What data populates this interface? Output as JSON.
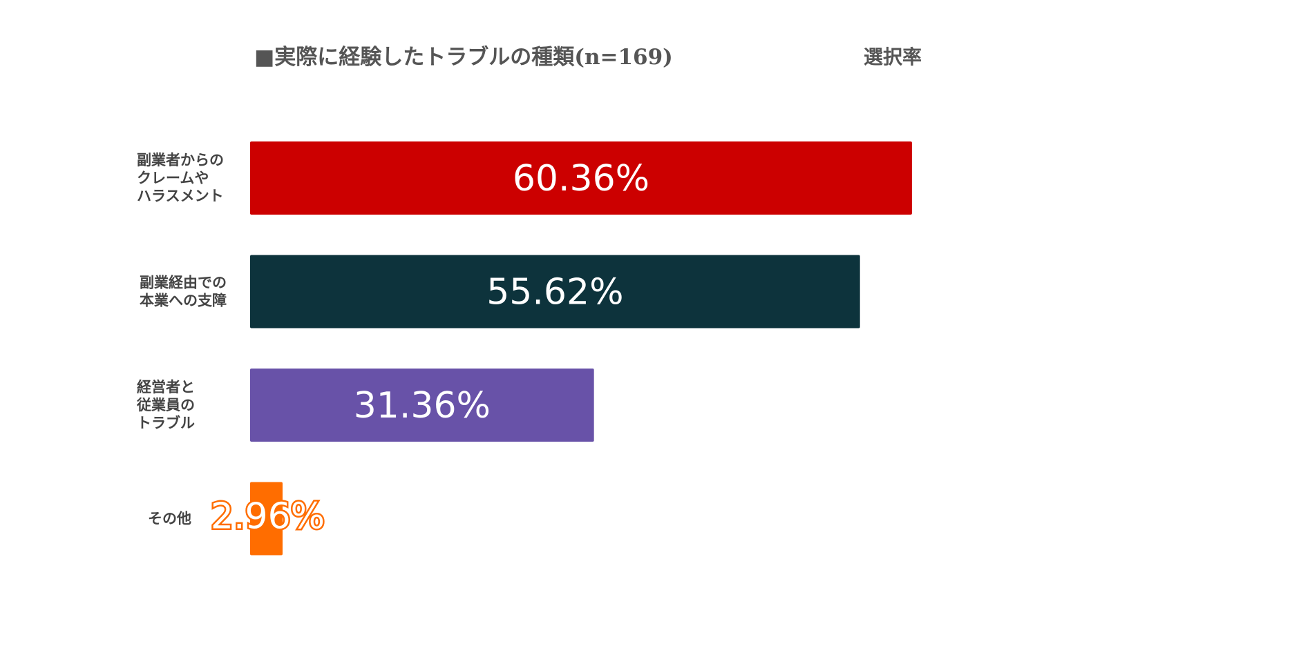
{
  "chart_data": {
    "type": "bar",
    "orientation": "horizontal",
    "title": "■実際に経験したトラブルの種類(n=169)",
    "value_header": "選択率",
    "categories": [
      [
        "副業者からの",
        "クレームや",
        "ハラスメント"
      ],
      [
        "副業経由での",
        "本業への支障"
      ],
      [
        "経営者と",
        "従業員の",
        "トラブル"
      ],
      [
        "その他"
      ]
    ],
    "values": [
      60.36,
      55.62,
      31.36,
      2.96
    ],
    "value_labels": [
      "60.36%",
      "55.62%",
      "31.36%",
      "2.96%"
    ],
    "colors": [
      "#cc0000",
      "#0d333c",
      "#6852a8",
      "#ff6d00"
    ],
    "xlim": [
      0,
      100
    ],
    "grid": false,
    "legend": "none"
  }
}
